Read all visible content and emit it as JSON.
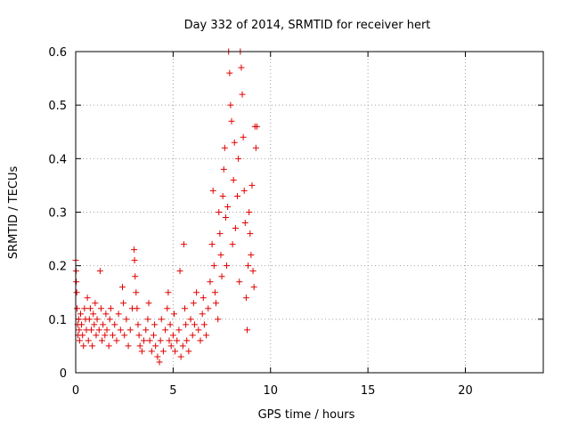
{
  "chart_data": {
    "type": "scatter",
    "title": "Day 332 of 2014, SRMTID for receiver hert",
    "xlabel": "GPS time / hours",
    "ylabel": "SRMTID / TECUs",
    "xlim": [
      0,
      24
    ],
    "ylim": [
      0,
      0.6
    ],
    "x_ticks": [
      0,
      5,
      10,
      15,
      20
    ],
    "x_tick_labels": [
      "0",
      "5",
      "10",
      "15",
      "20"
    ],
    "y_ticks": [
      0,
      0.1,
      0.2,
      0.3,
      0.4,
      0.5,
      0.6
    ],
    "y_tick_labels": [
      "0",
      "0.1",
      "0.2",
      "0.3",
      "0.4",
      "0.5",
      "0.6"
    ],
    "grid": true,
    "marker": "+",
    "color": "#e00000",
    "series": [
      {
        "name": "SRMTID",
        "points": [
          [
            0.0,
            0.21
          ],
          [
            0.02,
            0.19
          ],
          [
            0.03,
            0.17
          ],
          [
            0.05,
            0.15
          ],
          [
            0.07,
            0.12
          ],
          [
            0.1,
            0.09
          ],
          [
            0.12,
            0.07
          ],
          [
            0.15,
            0.1
          ],
          [
            0.18,
            0.08
          ],
          [
            0.2,
            0.06
          ],
          [
            0.25,
            0.11
          ],
          [
            0.3,
            0.09
          ],
          [
            0.35,
            0.07
          ],
          [
            0.4,
            0.05
          ],
          [
            0.45,
            0.12
          ],
          [
            0.5,
            0.1
          ],
          [
            0.55,
            0.08
          ],
          [
            0.6,
            0.14
          ],
          [
            0.65,
            0.06
          ],
          [
            0.7,
            0.1
          ],
          [
            0.75,
            0.12
          ],
          [
            0.8,
            0.08
          ],
          [
            0.85,
            0.05
          ],
          [
            0.9,
            0.11
          ],
          [
            0.95,
            0.09
          ],
          [
            1.0,
            0.13
          ],
          [
            1.05,
            0.07
          ],
          [
            1.1,
            0.1
          ],
          [
            1.2,
            0.08
          ],
          [
            1.25,
            0.19
          ],
          [
            1.3,
            0.12
          ],
          [
            1.35,
            0.06
          ],
          [
            1.4,
            0.09
          ],
          [
            1.5,
            0.07
          ],
          [
            1.55,
            0.11
          ],
          [
            1.6,
            0.08
          ],
          [
            1.7,
            0.05
          ],
          [
            1.75,
            0.1
          ],
          [
            1.8,
            0.12
          ],
          [
            1.9,
            0.07
          ],
          [
            2.0,
            0.09
          ],
          [
            2.1,
            0.06
          ],
          [
            2.2,
            0.11
          ],
          [
            2.3,
            0.08
          ],
          [
            2.4,
            0.16
          ],
          [
            2.45,
            0.13
          ],
          [
            2.5,
            0.07
          ],
          [
            2.6,
            0.1
          ],
          [
            2.7,
            0.05
          ],
          [
            2.8,
            0.08
          ],
          [
            2.9,
            0.12
          ],
          [
            3.0,
            0.23
          ],
          [
            3.02,
            0.21
          ],
          [
            3.05,
            0.18
          ],
          [
            3.1,
            0.15
          ],
          [
            3.15,
            0.12
          ],
          [
            3.2,
            0.09
          ],
          [
            3.25,
            0.07
          ],
          [
            3.3,
            0.05
          ],
          [
            3.4,
            0.04
          ],
          [
            3.5,
            0.06
          ],
          [
            3.6,
            0.08
          ],
          [
            3.7,
            0.1
          ],
          [
            3.75,
            0.13
          ],
          [
            3.8,
            0.06
          ],
          [
            3.9,
            0.04
          ],
          [
            4.0,
            0.07
          ],
          [
            4.05,
            0.09
          ],
          [
            4.1,
            0.05
          ],
          [
            4.2,
            0.03
          ],
          [
            4.3,
            0.02
          ],
          [
            4.35,
            0.06
          ],
          [
            4.4,
            0.1
          ],
          [
            4.5,
            0.04
          ],
          [
            4.6,
            0.08
          ],
          [
            4.7,
            0.12
          ],
          [
            4.75,
            0.15
          ],
          [
            4.8,
            0.06
          ],
          [
            4.85,
            0.09
          ],
          [
            4.9,
            0.05
          ],
          [
            5.0,
            0.07
          ],
          [
            5.05,
            0.11
          ],
          [
            5.1,
            0.04
          ],
          [
            5.2,
            0.06
          ],
          [
            5.3,
            0.08
          ],
          [
            5.35,
            0.19
          ],
          [
            5.4,
            0.03
          ],
          [
            5.5,
            0.05
          ],
          [
            5.55,
            0.24
          ],
          [
            5.6,
            0.12
          ],
          [
            5.65,
            0.09
          ],
          [
            5.7,
            0.06
          ],
          [
            5.8,
            0.04
          ],
          [
            5.9,
            0.1
          ],
          [
            6.0,
            0.07
          ],
          [
            6.05,
            0.13
          ],
          [
            6.1,
            0.09
          ],
          [
            6.2,
            0.15
          ],
          [
            6.3,
            0.08
          ],
          [
            6.4,
            0.06
          ],
          [
            6.5,
            0.11
          ],
          [
            6.55,
            0.14
          ],
          [
            6.6,
            0.09
          ],
          [
            6.7,
            0.07
          ],
          [
            6.8,
            0.12
          ],
          [
            6.9,
            0.17
          ],
          [
            7.0,
            0.24
          ],
          [
            7.05,
            0.34
          ],
          [
            7.1,
            0.2
          ],
          [
            7.15,
            0.15
          ],
          [
            7.2,
            0.13
          ],
          [
            7.3,
            0.1
          ],
          [
            7.35,
            0.3
          ],
          [
            7.4,
            0.26
          ],
          [
            7.45,
            0.22
          ],
          [
            7.5,
            0.18
          ],
          [
            7.55,
            0.33
          ],
          [
            7.6,
            0.38
          ],
          [
            7.65,
            0.42
          ],
          [
            7.7,
            0.29
          ],
          [
            7.75,
            0.2
          ],
          [
            7.8,
            0.31
          ],
          [
            7.85,
            0.6
          ],
          [
            7.9,
            0.56
          ],
          [
            7.95,
            0.5
          ],
          [
            8.0,
            0.47
          ],
          [
            8.05,
            0.24
          ],
          [
            8.1,
            0.36
          ],
          [
            8.15,
            0.43
          ],
          [
            8.2,
            0.27
          ],
          [
            8.3,
            0.33
          ],
          [
            8.35,
            0.4
          ],
          [
            8.4,
            0.17
          ],
          [
            8.45,
            0.6
          ],
          [
            8.5,
            0.57
          ],
          [
            8.55,
            0.52
          ],
          [
            8.6,
            0.44
          ],
          [
            8.65,
            0.34
          ],
          [
            8.7,
            0.28
          ],
          [
            8.75,
            0.14
          ],
          [
            8.8,
            0.08
          ],
          [
            8.85,
            0.2
          ],
          [
            8.9,
            0.3
          ],
          [
            8.95,
            0.26
          ],
          [
            9.0,
            0.22
          ],
          [
            9.05,
            0.35
          ],
          [
            9.1,
            0.19
          ],
          [
            9.15,
            0.16
          ],
          [
            9.2,
            0.46
          ],
          [
            9.25,
            0.42
          ],
          [
            9.3,
            0.46
          ]
        ]
      }
    ]
  }
}
